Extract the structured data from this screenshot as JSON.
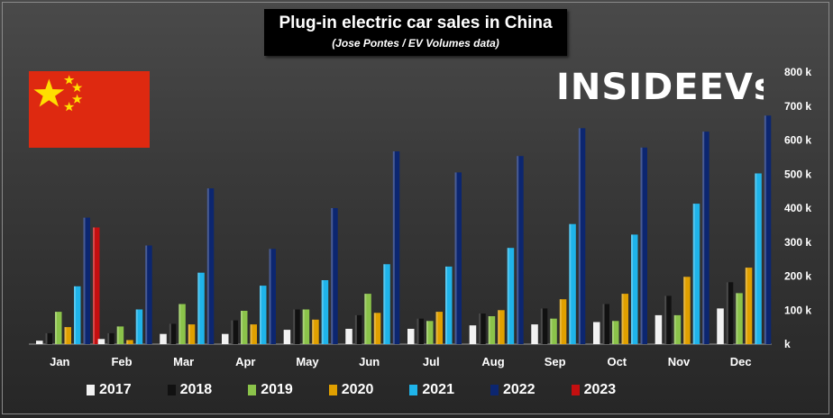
{
  "header": {
    "title": "Plug-in electric car sales in China",
    "subtitle": "(Jose Pontes / EV Volumes data)"
  },
  "brand": {
    "name": "INSIDEEVs",
    "logo_icon": "insideevs-logo"
  },
  "flag": {
    "icon": "china-flag",
    "colors": {
      "field": "#de2910",
      "stars": "#ffde00"
    }
  },
  "chart_data": {
    "type": "bar",
    "title": "Plug-in electric car sales in China",
    "subtitle": "(Jose Pontes / EV Volumes data)",
    "categories": [
      "Jan",
      "Feb",
      "Mar",
      "Apr",
      "May",
      "Jun",
      "Jul",
      "Aug",
      "Sep",
      "Oct",
      "Nov",
      "Dec"
    ],
    "ylim": [
      0,
      800000
    ],
    "y_ticks": [
      0,
      100000,
      200000,
      300000,
      400000,
      500000,
      600000,
      700000,
      800000
    ],
    "y_tick_labels": [
      "k",
      "100 k",
      "200 k",
      "300 k",
      "400 k",
      "500 k",
      "600 k",
      "700 k",
      "800 k"
    ],
    "y_axis_side": "right",
    "legend_position": "bottom",
    "series": [
      {
        "name": "2017",
        "color": "#f2f2f2",
        "values": [
          10000,
          15000,
          30000,
          30000,
          42000,
          45000,
          45000,
          55000,
          58000,
          65000,
          85000,
          105000
        ]
      },
      {
        "name": "2018",
        "color": "#111111",
        "values": [
          32000,
          32000,
          60000,
          70000,
          102000,
          85000,
          75000,
          90000,
          105000,
          118000,
          142000,
          182000
        ]
      },
      {
        "name": "2019",
        "color": "#8bc34a",
        "values": [
          95000,
          52000,
          118000,
          98000,
          102000,
          148000,
          68000,
          82000,
          75000,
          68000,
          85000,
          150000
        ]
      },
      {
        "name": "2020",
        "color": "#e0a000",
        "values": [
          50000,
          12000,
          58000,
          58000,
          72000,
          92000,
          95000,
          100000,
          132000,
          148000,
          198000,
          225000
        ]
      },
      {
        "name": "2021",
        "color": "#1fb4ea",
        "values": [
          170000,
          102000,
          210000,
          172000,
          188000,
          235000,
          228000,
          283000,
          353000,
          322000,
          413000,
          502000
        ]
      },
      {
        "name": "2022",
        "color": "#0c2670",
        "values": [
          372000,
          290000,
          458000,
          280000,
          400000,
          567000,
          505000,
          553000,
          635000,
          578000,
          625000,
          672000
        ]
      },
      {
        "name": "2023",
        "color": "#c40f10",
        "values": [
          343000,
          null,
          null,
          null,
          null,
          null,
          null,
          null,
          null,
          null,
          null,
          null
        ]
      }
    ]
  }
}
